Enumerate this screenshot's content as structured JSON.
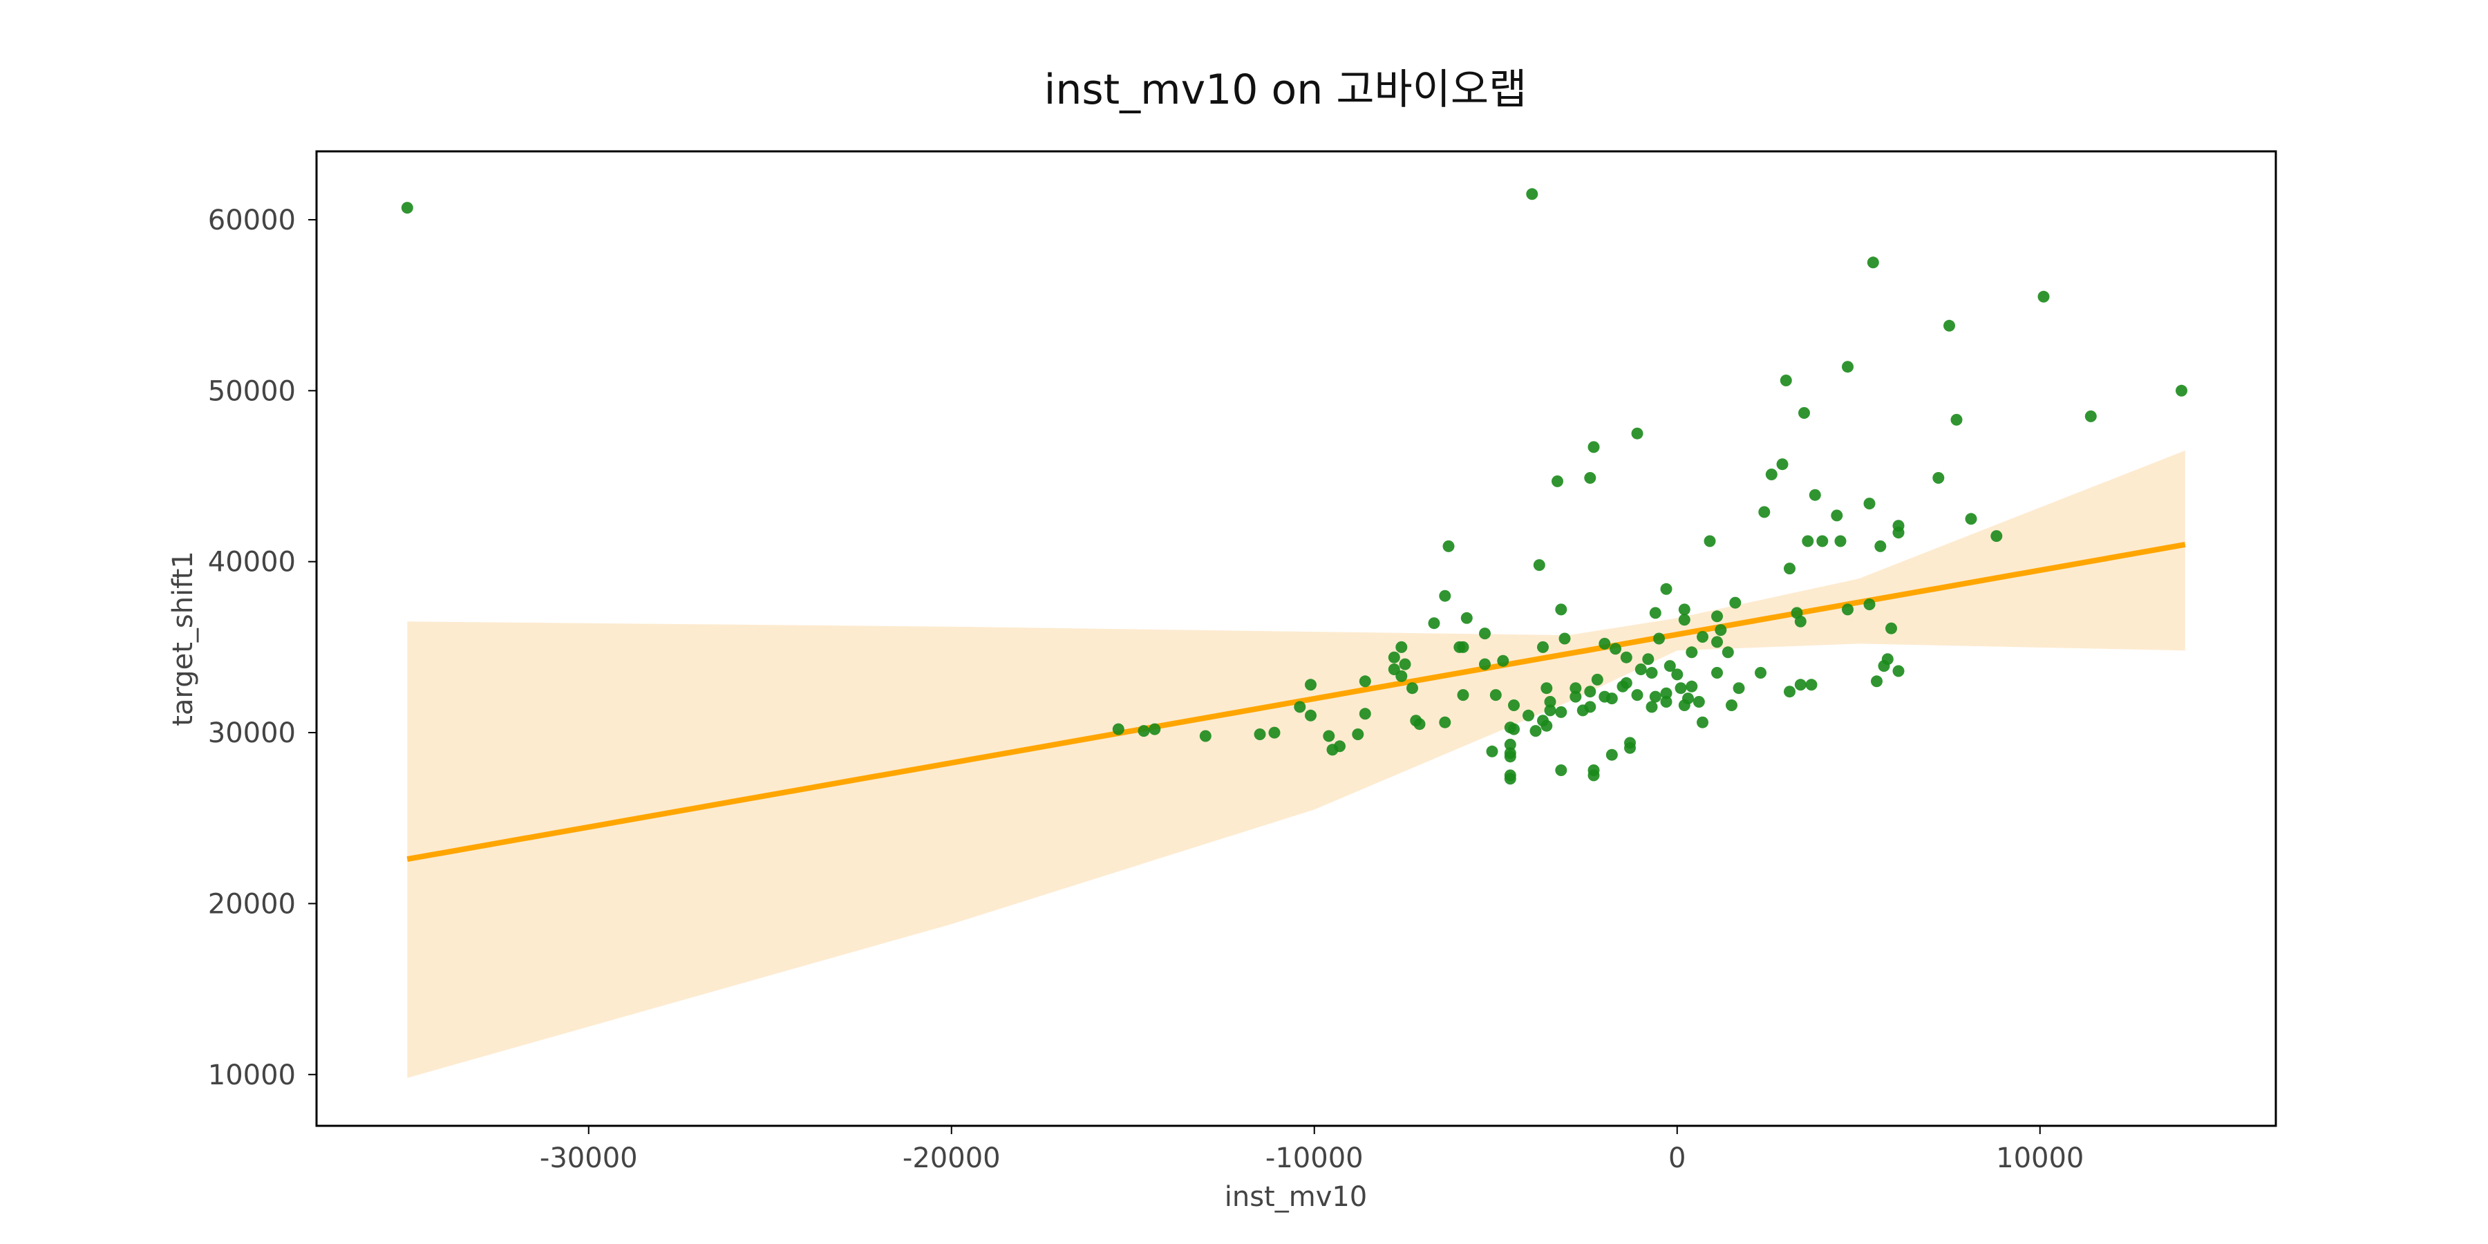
{
  "chart_data": {
    "type": "scatter",
    "title": "inst_mv10 on 고바이오랩",
    "xlabel": "inst_mv10",
    "ylabel": "target_shift1",
    "xlim": [
      -37500,
      16500
    ],
    "ylim": [
      7000,
      64000
    ],
    "x_ticks": [
      -30000,
      -20000,
      -10000,
      0,
      10000
    ],
    "y_ticks": [
      10000,
      20000,
      30000,
      40000,
      50000,
      60000
    ],
    "grid": false,
    "colors": {
      "points": "#1a8a1a",
      "regression_line": "#ffa500",
      "confidence_band": "#fdebd0",
      "frame": "#000000"
    },
    "regression_line": {
      "x": [
        -35000,
        14000
      ],
      "y": [
        22600,
        41000
      ]
    },
    "confidence_band": {
      "x": [
        -35000,
        -20000,
        -10000,
        -3000,
        0,
        5000,
        14000
      ],
      "lower": [
        9800,
        18800,
        25500,
        31800,
        34800,
        35200,
        34800
      ],
      "upper": [
        36500,
        36200,
        35900,
        35700,
        36700,
        39000,
        46500
      ]
    },
    "points": [
      [
        -35000,
        60700
      ],
      [
        -4000,
        61500
      ],
      [
        5400,
        57500
      ],
      [
        10100,
        55500
      ],
      [
        7500,
        53800
      ],
      [
        4700,
        51400
      ],
      [
        3000,
        50600
      ],
      [
        13900,
        50000
      ],
      [
        3500,
        48700
      ],
      [
        11400,
        48500
      ],
      [
        7700,
        48300
      ],
      [
        -2300,
        46700
      ],
      [
        -1100,
        47500
      ],
      [
        2900,
        45700
      ],
      [
        2600,
        45100
      ],
      [
        7200,
        44900
      ],
      [
        -3300,
        44700
      ],
      [
        -2400,
        44900
      ],
      [
        3800,
        43900
      ],
      [
        5300,
        43400
      ],
      [
        2400,
        42900
      ],
      [
        4400,
        42700
      ],
      [
        8100,
        42500
      ],
      [
        6100,
        42100
      ],
      [
        6100,
        41700
      ],
      [
        8800,
        41500
      ],
      [
        3600,
        41200
      ],
      [
        4000,
        41200
      ],
      [
        4500,
        41200
      ],
      [
        900,
        41200
      ],
      [
        5600,
        40900
      ],
      [
        -6300,
        40900
      ],
      [
        -3800,
        39800
      ],
      [
        3100,
        39600
      ],
      [
        -300,
        38400
      ],
      [
        -6400,
        38000
      ],
      [
        1600,
        37600
      ],
      [
        5300,
        37500
      ],
      [
        -3200,
        37200
      ],
      [
        4700,
        37200
      ],
      [
        200,
        37200
      ],
      [
        -600,
        37000
      ],
      [
        3300,
        37000
      ],
      [
        200,
        36600
      ],
      [
        -5800,
        36700
      ],
      [
        3400,
        36500
      ],
      [
        1100,
        36800
      ],
      [
        -6700,
        36400
      ],
      [
        5900,
        36100
      ],
      [
        1200,
        36000
      ],
      [
        -500,
        35500
      ],
      [
        -3100,
        35500
      ],
      [
        -5300,
        35800
      ],
      [
        700,
        35600
      ],
      [
        1100,
        35300
      ],
      [
        -2000,
        35200
      ],
      [
        -3700,
        35000
      ],
      [
        -5900,
        35000
      ],
      [
        -6000,
        35000
      ],
      [
        -7600,
        35000
      ],
      [
        -1700,
        34900
      ],
      [
        1400,
        34700
      ],
      [
        400,
        34700
      ],
      [
        -1400,
        34400
      ],
      [
        -7800,
        34400
      ],
      [
        -4800,
        34200
      ],
      [
        -800,
        34300
      ],
      [
        5800,
        34300
      ],
      [
        -7500,
        34000
      ],
      [
        -5300,
        34000
      ],
      [
        -200,
        33900
      ],
      [
        -1000,
        33700
      ],
      [
        6100,
        33600
      ],
      [
        5700,
        33900
      ],
      [
        -7800,
        33700
      ],
      [
        1100,
        33500
      ],
      [
        2300,
        33500
      ],
      [
        0,
        33400
      ],
      [
        -700,
        33500
      ],
      [
        -7600,
        33300
      ],
      [
        -2200,
        33100
      ],
      [
        5500,
        33000
      ],
      [
        -1400,
        32900
      ],
      [
        -8600,
        33000
      ],
      [
        -10100,
        32800
      ],
      [
        -1500,
        32700
      ],
      [
        3700,
        32800
      ],
      [
        3400,
        32800
      ],
      [
        -3600,
        32600
      ],
      [
        -2800,
        32600
      ],
      [
        -2400,
        32400
      ],
      [
        100,
        32600
      ],
      [
        400,
        32700
      ],
      [
        1700,
        32600
      ],
      [
        -300,
        32300
      ],
      [
        -600,
        32100
      ],
      [
        300,
        32000
      ],
      [
        3100,
        32400
      ],
      [
        -7300,
        32600
      ],
      [
        -5000,
        32200
      ],
      [
        -5900,
        32200
      ],
      [
        -2800,
        32100
      ],
      [
        -2000,
        32100
      ],
      [
        -1100,
        32200
      ],
      [
        -300,
        31800
      ],
      [
        600,
        31800
      ],
      [
        -2400,
        31500
      ],
      [
        -3500,
        31800
      ],
      [
        -2600,
        31300
      ],
      [
        -3200,
        31200
      ],
      [
        -4500,
        31600
      ],
      [
        -700,
        31500
      ],
      [
        200,
        31600
      ],
      [
        1500,
        31600
      ],
      [
        -1800,
        32000
      ],
      [
        -3500,
        31300
      ],
      [
        -10400,
        31500
      ],
      [
        -10100,
        31000
      ],
      [
        -8600,
        31100
      ],
      [
        -3700,
        30700
      ],
      [
        -3600,
        30400
      ],
      [
        -4100,
        31000
      ],
      [
        -6400,
        30600
      ],
      [
        -7200,
        30700
      ],
      [
        -7100,
        30500
      ],
      [
        -3900,
        30100
      ],
      [
        -4600,
        30300
      ],
      [
        -4500,
        30200
      ],
      [
        700,
        30600
      ],
      [
        -15400,
        30200
      ],
      [
        -14700,
        30100
      ],
      [
        -14400,
        30200
      ],
      [
        -11100,
        30000
      ],
      [
        -11500,
        29900
      ],
      [
        -13000,
        29800
      ],
      [
        -9600,
        29800
      ],
      [
        -8800,
        29900
      ],
      [
        -9300,
        29200
      ],
      [
        -9500,
        29000
      ],
      [
        -1300,
        29400
      ],
      [
        -1300,
        29100
      ],
      [
        -4600,
        29300
      ],
      [
        -5100,
        28900
      ],
      [
        -4600,
        28800
      ],
      [
        -4600,
        28600
      ],
      [
        -1800,
        28700
      ],
      [
        -3200,
        27800
      ],
      [
        -2300,
        27800
      ],
      [
        -2300,
        27500
      ],
      [
        -4600,
        27500
      ],
      [
        -4600,
        27300
      ]
    ]
  }
}
